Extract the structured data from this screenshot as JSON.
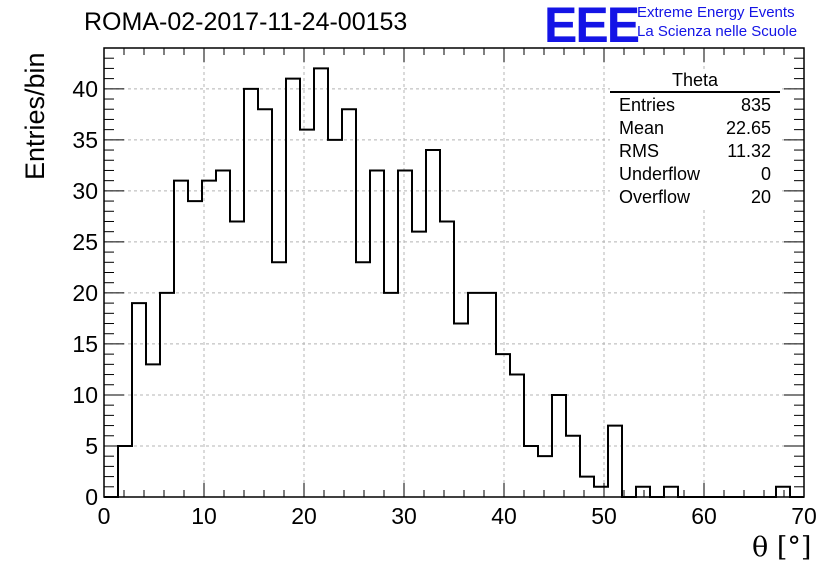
{
  "header": {
    "title": "ROMA-02-2017-11-24-00153",
    "logo": "EEE",
    "logo_line1": "Extreme Energy Events",
    "logo_line2": "La Scienza nelle Scuole"
  },
  "stats": {
    "name": "Theta",
    "rows": [
      {
        "label": "Entries",
        "value": "835"
      },
      {
        "label": "Mean",
        "value": "22.65"
      },
      {
        "label": "RMS",
        "value": "11.32"
      },
      {
        "label": "Underflow",
        "value": "0"
      },
      {
        "label": "Overflow",
        "value": "20"
      }
    ]
  },
  "chart_data": {
    "type": "bar",
    "histogram": true,
    "xlabel": "θ [°]",
    "ylabel": "Entries/bin",
    "xlim": [
      0,
      70
    ],
    "ylim": [
      0,
      44
    ],
    "xticks": [
      0,
      10,
      20,
      30,
      40,
      50,
      60,
      70
    ],
    "yticks": [
      0,
      5,
      10,
      15,
      20,
      25,
      30,
      35,
      40
    ],
    "grid": true,
    "bin_edges_start": 0,
    "bin_width": 1.4,
    "values": [
      0,
      5,
      19,
      13,
      20,
      31,
      29,
      31,
      32,
      27,
      40,
      38,
      23,
      41,
      36,
      42,
      35,
      38,
      23,
      32,
      20,
      32,
      26,
      34,
      27,
      17,
      20,
      20,
      14,
      12,
      5,
      4,
      10,
      6,
      2,
      1,
      7,
      0,
      1,
      0,
      1,
      0,
      0,
      0,
      0,
      0,
      0,
      0,
      1,
      0
    ],
    "colors": {
      "line": "#000000",
      "grid": "#b4b4b4"
    }
  }
}
